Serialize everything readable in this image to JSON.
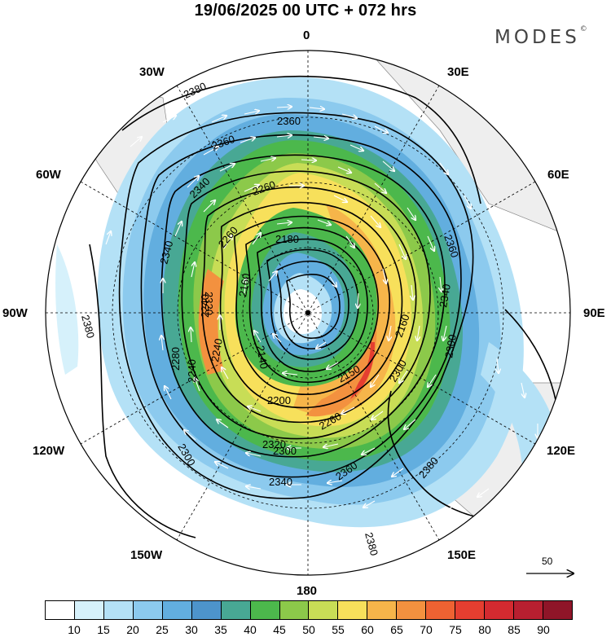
{
  "title": "19/06/2025  00 UTC  + 072 hrs",
  "brand": "MODES",
  "brand_mark": "©",
  "longitude_labels": {
    "lon_0": "0",
    "lon_30e": "30E",
    "lon_60e": "60E",
    "lon_90e": "90E",
    "lon_120e": "120E",
    "lon_150e": "150E",
    "lon_180": "180",
    "lon_150w": "150W",
    "lon_120w": "120W",
    "lon_90w": "90W",
    "lon_60w": "60W",
    "lon_30w": "30W"
  },
  "reference_vector": {
    "label": "50",
    "icon": "right-arrow-icon"
  },
  "contour_labels": [
    "2380",
    "2360",
    "2340",
    "2320",
    "2300",
    "2280",
    "2260",
    "2240",
    "2220",
    "2200",
    "2180",
    "2160",
    "2150",
    "2140"
  ],
  "colorbar": {
    "colors": [
      "#ffffff",
      "#d6f1fb",
      "#b4e1f6",
      "#8ccaee",
      "#62aedf",
      "#4d94cb",
      "#48a894",
      "#4cb84c",
      "#8cc94a",
      "#c8dd56",
      "#f7e05b",
      "#f6b54a",
      "#f3913f",
      "#ee6232",
      "#e53e30",
      "#d42a30",
      "#b81f30",
      "#8f1528"
    ],
    "labels": [
      "10",
      "15",
      "20",
      "25",
      "30",
      "35",
      "40",
      "45",
      "50",
      "55",
      "60",
      "65",
      "70",
      "75",
      "80",
      "85",
      "90"
    ]
  }
}
